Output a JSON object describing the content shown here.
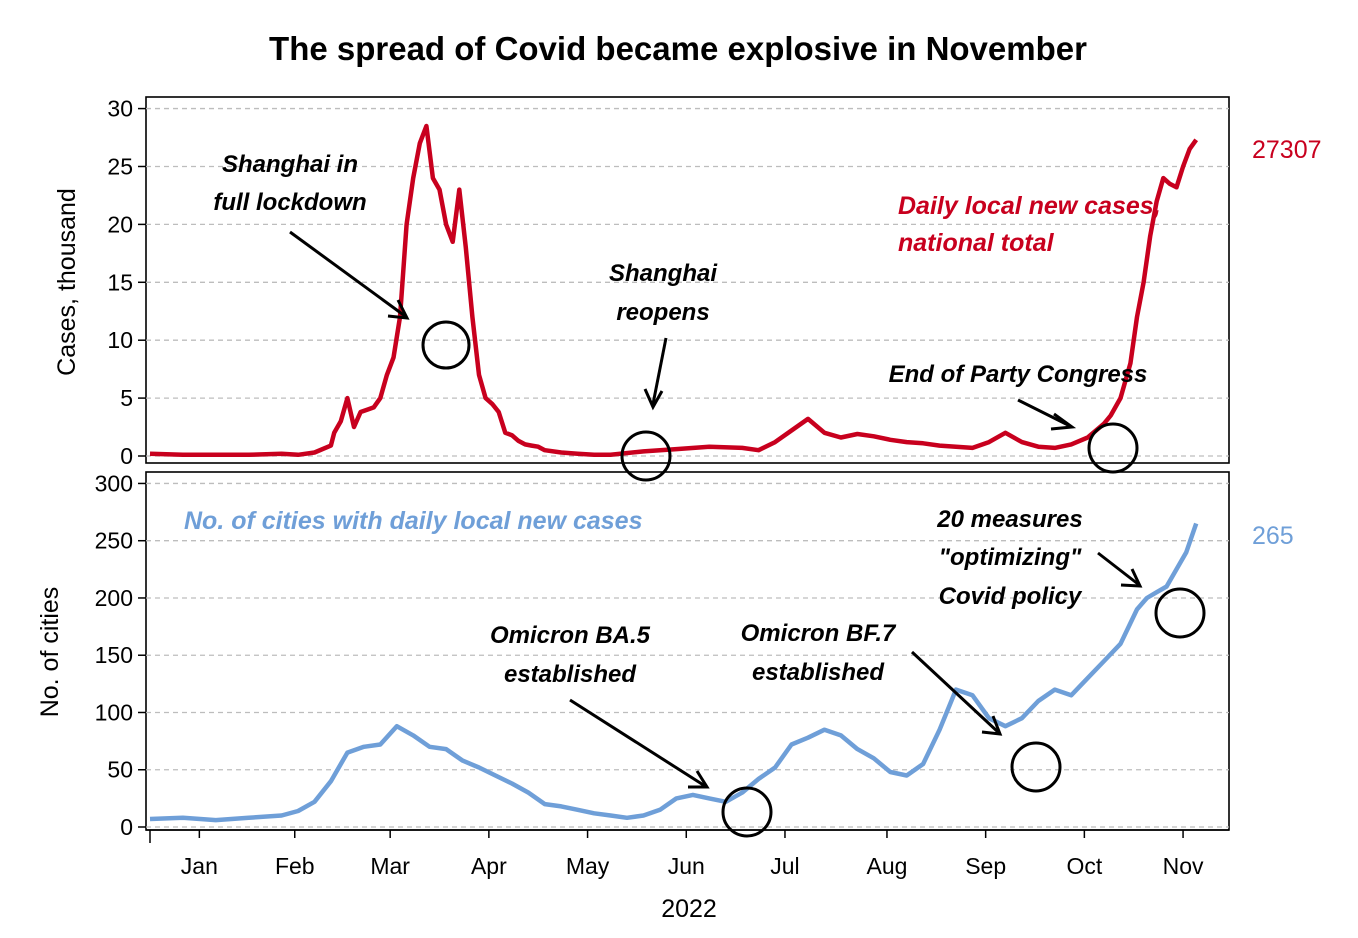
{
  "title": "The spread of Covid became explosive in November",
  "colors": {
    "cases": "#c8001e",
    "cities": "#6f9fd8",
    "grid": "#bdbdbd"
  },
  "chart_data": [
    {
      "type": "line",
      "name": "cases_panel",
      "ylabel": "Cases, thousand",
      "ylim": [
        0,
        31
      ],
      "yticks": [
        0,
        5,
        10,
        15,
        20,
        25,
        30
      ],
      "ytick_labels": [
        "0",
        "5",
        "10",
        "15",
        "20",
        "25",
        "30"
      ],
      "series_label": [
        "Daily local new cases,",
        "national total"
      ],
      "end_value": "27307",
      "series": [
        {
          "name": "Daily local new cases, national total",
          "day": [
            0,
            10,
            20,
            30,
            40,
            45,
            50,
            55,
            56,
            58,
            60,
            62,
            64,
            66,
            68,
            70,
            72,
            74,
            76,
            78,
            80,
            82,
            84,
            86,
            88,
            90,
            92,
            94,
            96,
            98,
            100,
            102,
            104,
            106,
            108,
            110,
            112,
            114,
            116,
            118,
            120,
            125,
            130,
            135,
            140,
            150,
            160,
            170,
            180,
            185,
            190,
            195,
            200,
            205,
            210,
            215,
            220,
            225,
            230,
            235,
            240,
            245,
            250,
            255,
            260,
            265,
            270,
            275,
            280,
            285,
            290,
            292,
            295,
            298,
            300,
            302,
            304,
            306,
            308,
            310,
            312,
            314,
            316,
            318
          ],
          "values": [
            0.2,
            0.1,
            0.1,
            0.1,
            0.2,
            0.1,
            0.3,
            0.9,
            2,
            3,
            5,
            2.5,
            3.8,
            4,
            4.2,
            5,
            7,
            8.5,
            12,
            20,
            24,
            27,
            28.5,
            24,
            23,
            20,
            18.5,
            23,
            18,
            12,
            7,
            5,
            4.5,
            3.8,
            2,
            1.8,
            1.3,
            1,
            0.9,
            0.8,
            0.5,
            0.3,
            0.2,
            0.1,
            0.1,
            0.4,
            0.6,
            0.8,
            0.7,
            0.5,
            1.2,
            2.2,
            3.2,
            2,
            1.6,
            1.9,
            1.7,
            1.4,
            1.2,
            1.1,
            0.9,
            0.8,
            0.7,
            1.2,
            2,
            1.2,
            0.8,
            0.7,
            1,
            1.6,
            2.8,
            3.5,
            5,
            8,
            12,
            15,
            19,
            22,
            24,
            23.5,
            23.2,
            25,
            26.5,
            27.3
          ]
        }
      ],
      "annotations": [
        {
          "text": [
            "Shanghai in",
            "full lockdown"
          ]
        },
        {
          "text": [
            "Shanghai",
            "reopens"
          ]
        },
        {
          "text": [
            "End of Party Congress"
          ]
        }
      ]
    },
    {
      "type": "line",
      "name": "cities_panel",
      "ylabel": "No. of cities",
      "ylim": [
        0,
        310
      ],
      "yticks": [
        0,
        50,
        100,
        150,
        200,
        250,
        300
      ],
      "ytick_labels": [
        "0",
        "50",
        "100",
        "150",
        "200",
        "250",
        "300"
      ],
      "series_label": [
        "No. of cities with daily local new cases"
      ],
      "end_value": "265",
      "series": [
        {
          "name": "No. of cities with daily local new cases",
          "day": [
            0,
            10,
            20,
            30,
            40,
            45,
            50,
            55,
            60,
            65,
            70,
            75,
            80,
            85,
            90,
            95,
            100,
            105,
            110,
            115,
            120,
            125,
            130,
            135,
            140,
            145,
            150,
            155,
            160,
            165,
            170,
            175,
            180,
            185,
            190,
            195,
            200,
            205,
            210,
            215,
            220,
            225,
            230,
            235,
            240,
            245,
            250,
            255,
            260,
            265,
            270,
            275,
            280,
            285,
            290,
            295,
            300,
            303,
            306,
            309,
            312,
            315,
            318
          ],
          "values": [
            7,
            8,
            6,
            8,
            10,
            14,
            22,
            40,
            65,
            70,
            72,
            88,
            80,
            70,
            68,
            58,
            52,
            45,
            38,
            30,
            20,
            18,
            15,
            12,
            10,
            8,
            10,
            15,
            25,
            28,
            25,
            22,
            30,
            42,
            52,
            72,
            78,
            85,
            80,
            68,
            60,
            48,
            45,
            55,
            85,
            120,
            115,
            95,
            88,
            95,
            110,
            120,
            115,
            130,
            145,
            160,
            190,
            200,
            205,
            210,
            225,
            240,
            265
          ]
        }
      ],
      "annotations": [
        {
          "text": [
            "Omicron BA.5",
            "established"
          ]
        },
        {
          "text": [
            "Omicron BF.7",
            "established"
          ]
        },
        {
          "text": [
            "20 measures",
            "\"optimizing\"",
            "Covid policy"
          ]
        }
      ]
    }
  ],
  "x_axis": {
    "year_label": "2022",
    "months": [
      {
        "label": "Jan",
        "day": 15
      },
      {
        "label": "Feb",
        "day": 44
      },
      {
        "label": "Mar",
        "day": 73
      },
      {
        "label": "Apr",
        "day": 103
      },
      {
        "label": "May",
        "day": 133
      },
      {
        "label": "Jun",
        "day": 163
      },
      {
        "label": "Jul",
        "day": 193
      },
      {
        "label": "Aug",
        "day": 224
      },
      {
        "label": "Sep",
        "day": 254
      },
      {
        "label": "Oct",
        "day": 284
      },
      {
        "label": "Nov",
        "day": 314
      }
    ]
  }
}
